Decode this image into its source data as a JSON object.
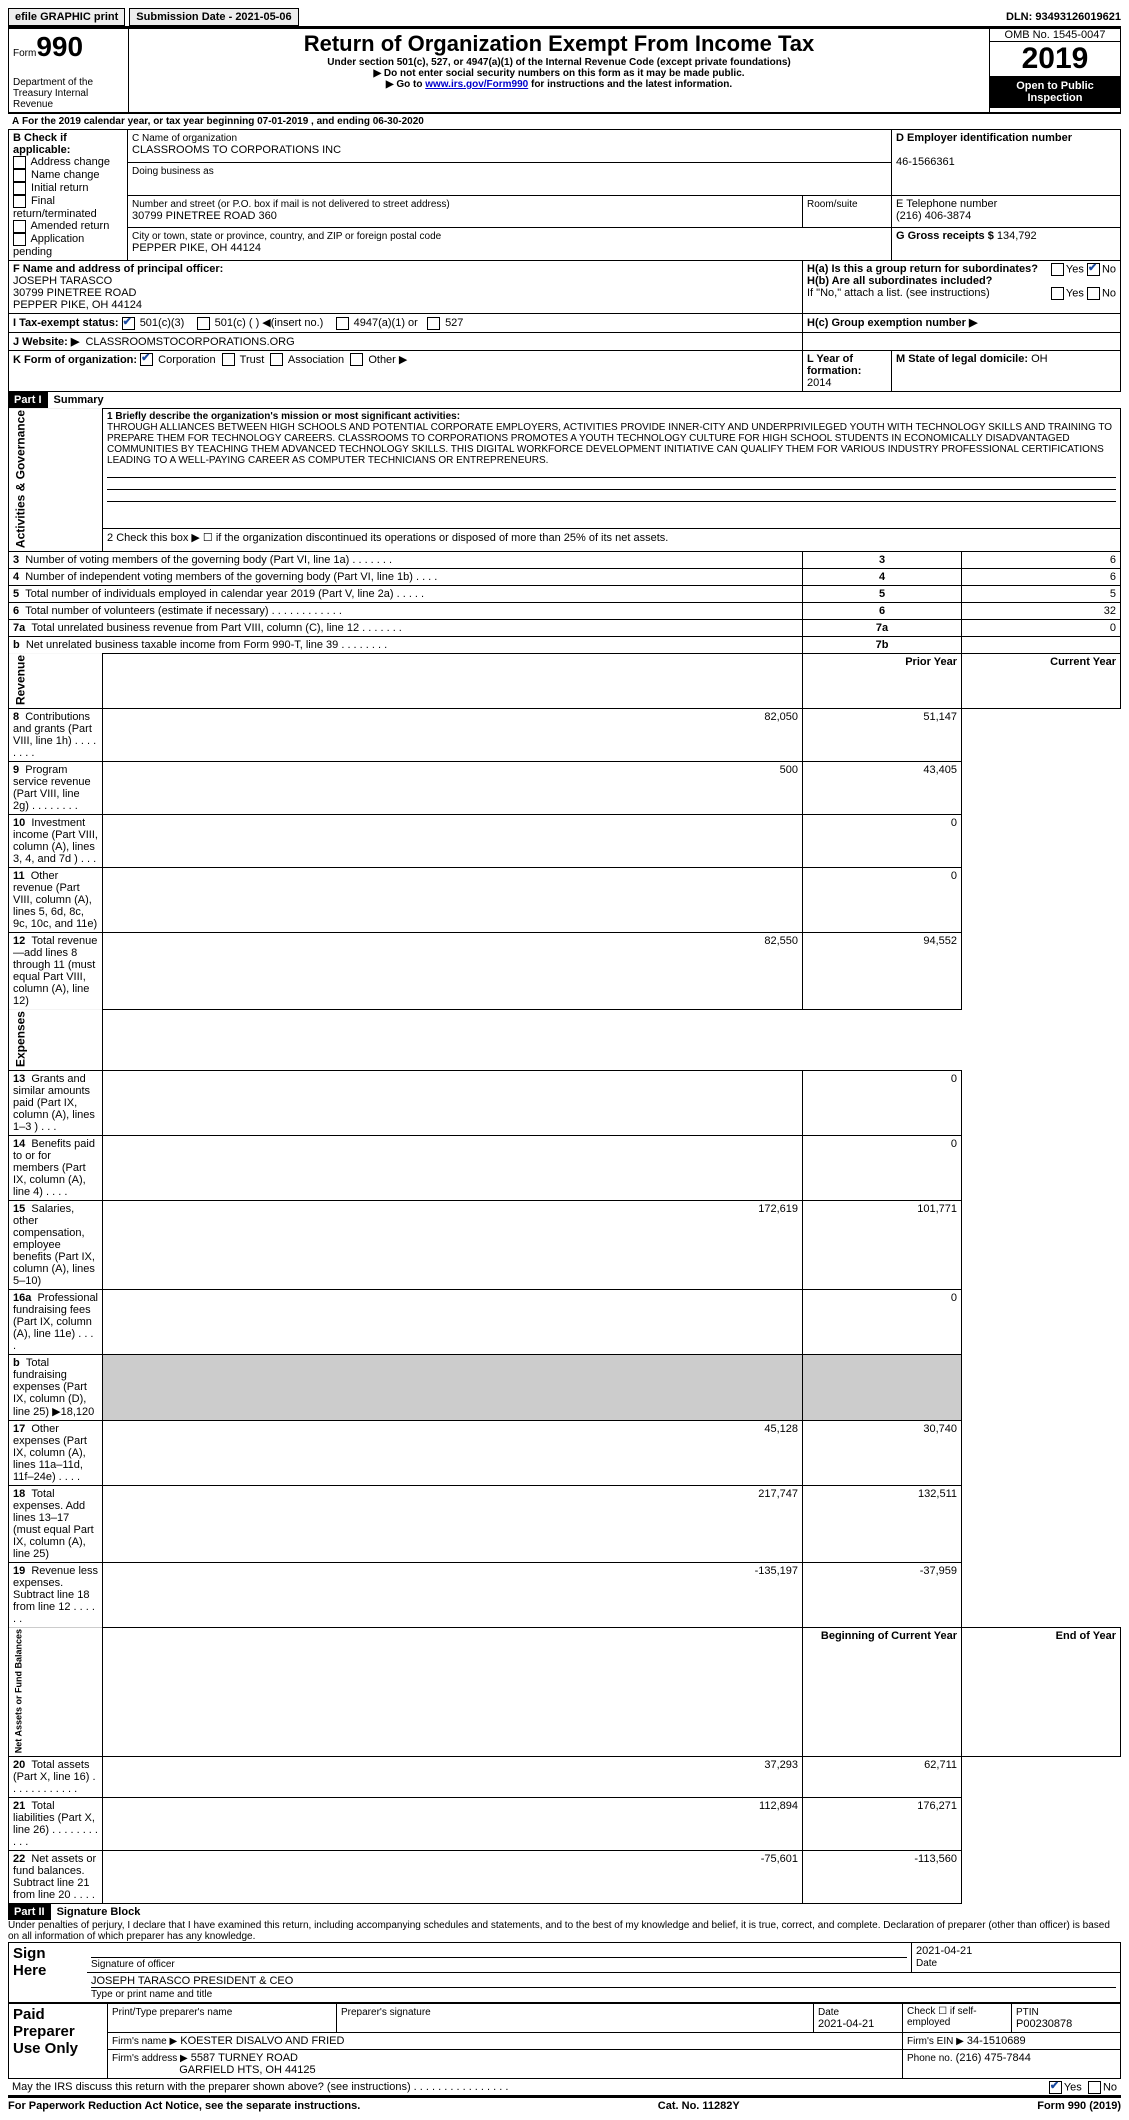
{
  "top": {
    "efile": "efile GRAPHIC print",
    "submission": "Submission Date - 2021-05-06",
    "dln": "DLN: 93493126019621"
  },
  "header": {
    "form_label": "Form",
    "form_no": "990",
    "dept": "Department of the Treasury Internal Revenue",
    "title": "Return of Organization Exempt From Income Tax",
    "sub": "Under section 501(c), 527, or 4947(a)(1) of the Internal Revenue Code (except private foundations)",
    "note1": "▶ Do not enter social security numbers on this form as it may be made public.",
    "note2_a": "▶ Go to ",
    "note2_link": "www.irs.gov/Form990",
    "note2_b": " for instructions and the latest information.",
    "omb": "OMB No. 1545-0047",
    "year": "2019",
    "open": "Open to Public Inspection"
  },
  "a_line": "For the 2019 calendar year, or tax year beginning 07-01-2019    , and ending 06-30-2020",
  "b": {
    "title": "B Check if applicable:",
    "opts": [
      "Address change",
      "Name change",
      "Initial return",
      "Final return/terminated",
      "Amended return",
      "Application pending"
    ]
  },
  "c": {
    "label_name": "C Name of organization",
    "name": "CLASSROOMS TO CORPORATIONS INC",
    "dba_label": "Doing business as",
    "addr_label": "Number and street (or P.O. box if mail is not delivered to street address)",
    "room_label": "Room/suite",
    "addr": "30799 PINETREE ROAD 360",
    "city_label": "City or town, state or province, country, and ZIP or foreign postal code",
    "city": "PEPPER PIKE, OH  44124"
  },
  "d": {
    "label": "D Employer identification number",
    "val": "46-1566361"
  },
  "e": {
    "label": "E Telephone number",
    "val": "(216) 406-3874"
  },
  "g": {
    "label": "G Gross receipts $",
    "val": "134,792"
  },
  "f": {
    "label": "F  Name and address of principal officer:",
    "name": "JOSEPH TARASCO",
    "addr1": "30799 PINETREE ROAD",
    "addr2": "PEPPER PIKE, OH  44124"
  },
  "h": {
    "a": "H(a)  Is this a group return for subordinates?",
    "b": "H(b)  Are all subordinates included?",
    "note": "If \"No,\" attach a list. (see instructions)",
    "c": "H(c)  Group exemption number ▶",
    "yes": "Yes",
    "no": "No"
  },
  "i": {
    "label": "I    Tax-exempt status:",
    "o1": "501(c)(3)",
    "o2": "501(c) (   ) ◀(insert no.)",
    "o3": "4947(a)(1) or",
    "o4": "527"
  },
  "j": {
    "label": "J    Website: ▶",
    "val": "CLASSROOMSTOCORPORATIONS.ORG"
  },
  "k": {
    "label": "K Form of organization:",
    "o1": "Corporation",
    "o2": "Trust",
    "o3": "Association",
    "o4": "Other ▶"
  },
  "l": {
    "label": "L Year of formation:",
    "val": "2014"
  },
  "m": {
    "label": "M State of legal domicile:",
    "val": "OH"
  },
  "part1": {
    "hdr": "Part I",
    "title": "Summary"
  },
  "mission": {
    "q": "1   Briefly describe the organization's mission or most significant activities:",
    "text": "THROUGH ALLIANCES BETWEEN HIGH SCHOOLS AND POTENTIAL CORPORATE EMPLOYERS, ACTIVITIES PROVIDE INNER-CITY AND UNDERPRIVILEGED YOUTH WITH TECHNOLOGY SKILLS AND TRAINING TO PREPARE THEM FOR TECHNOLOGY CAREERS. CLASSROOMS TO CORPORATIONS PROMOTES A YOUTH TECHNOLOGY CULTURE FOR HIGH SCHOOL STUDENTS IN ECONOMICALLY DISADVANTAGED COMMUNITIES BY TEACHING THEM ADVANCED TECHNOLOGY SKILLS. THIS DIGITAL WORKFORCE DEVELOPMENT INITIATIVE CAN QUALIFY THEM FOR VARIOUS INDUSTRY PROFESSIONAL CERTIFICATIONS LEADING TO A WELL-PAYING CAREER AS COMPUTER TECHNICIANS OR ENTREPRENEURS."
  },
  "lines": {
    "l2": "2   Check this box ▶ ☐ if the organization discontinued its operations or disposed of more than 25% of its net assets.",
    "rows_ag": [
      {
        "n": "3",
        "t": "Number of voting members of the governing body (Part VI, line 1a)  .   .   .   .   .   .   .",
        "box": "3",
        "v": "6"
      },
      {
        "n": "4",
        "t": "Number of independent voting members of the governing body (Part VI, line 1b)  .   .   .   .",
        "box": "4",
        "v": "6"
      },
      {
        "n": "5",
        "t": "Total number of individuals employed in calendar year 2019 (Part V, line 2a)   .   .   .   .   .",
        "box": "5",
        "v": "5"
      },
      {
        "n": "6",
        "t": "Total number of volunteers (estimate if necessary)   .   .   .   .   .   .   .   .   .   .   .   .",
        "box": "6",
        "v": "32"
      },
      {
        "n": "7a",
        "t": "Total unrelated business revenue from Part VIII, column (C), line 12   .   .   .   .   .   .   .",
        "box": "7a",
        "v": "0"
      },
      {
        "n": "b",
        "t": "Net unrelated business taxable income from Form 990-T, line 39   .   .   .   .   .   .   .   .",
        "box": "7b",
        "v": ""
      }
    ],
    "col_prior": "Prior Year",
    "col_curr": "Current Year",
    "revenue": [
      {
        "n": "8",
        "t": "Contributions and grants (Part VIII, line 1h)   .   .   .   .   .   .   .   .",
        "p": "82,050",
        "c": "51,147"
      },
      {
        "n": "9",
        "t": "Program service revenue (Part VIII, line 2g)   .   .   .   .   .   .   .   .",
        "p": "500",
        "c": "43,405"
      },
      {
        "n": "10",
        "t": "Investment income (Part VIII, column (A), lines 3, 4, and 7d )   .   .   .",
        "p": "",
        "c": "0"
      },
      {
        "n": "11",
        "t": "Other revenue (Part VIII, column (A), lines 5, 6d, 8c, 9c, 10c, and 11e)",
        "p": "",
        "c": "0"
      },
      {
        "n": "12",
        "t": "Total revenue—add lines 8 through 11 (must equal Part VIII, column (A), line 12)",
        "p": "82,550",
        "c": "94,552"
      }
    ],
    "expenses": [
      {
        "n": "13",
        "t": "Grants and similar amounts paid (Part IX, column (A), lines 1–3 )   .   .   .",
        "p": "",
        "c": "0"
      },
      {
        "n": "14",
        "t": "Benefits paid to or for members (Part IX, column (A), line 4)   .   .   .   .",
        "p": "",
        "c": "0"
      },
      {
        "n": "15",
        "t": "Salaries, other compensation, employee benefits (Part IX, column (A), lines 5–10)",
        "p": "172,619",
        "c": "101,771"
      },
      {
        "n": "16a",
        "t": "Professional fundraising fees (Part IX, column (A), line 11e)   .   .   .   .",
        "p": "",
        "c": "0"
      },
      {
        "n": "b",
        "t": "Total fundraising expenses (Part IX, column (D), line 25) ▶18,120",
        "p": "shade",
        "c": "shade"
      },
      {
        "n": "17",
        "t": "Other expenses (Part IX, column (A), lines 11a–11d, 11f–24e)   .   .   .   .",
        "p": "45,128",
        "c": "30,740"
      },
      {
        "n": "18",
        "t": "Total expenses. Add lines 13–17 (must equal Part IX, column (A), line 25)",
        "p": "217,747",
        "c": "132,511"
      },
      {
        "n": "19",
        "t": "Revenue less expenses. Subtract line 18 from line 12   .   .   .   .   .   .",
        "p": "-135,197",
        "c": "-37,959"
      }
    ],
    "col_begin": "Beginning of Current Year",
    "col_end": "End of Year",
    "netassets": [
      {
        "n": "20",
        "t": "Total assets (Part X, line 16)   .   .   .   .   .   .   .   .   .   .   .   .",
        "p": "37,293",
        "c": "62,711"
      },
      {
        "n": "21",
        "t": "Total liabilities (Part X, line 26)   .   .   .   .   .   .   .   .   .   .   .",
        "p": "112,894",
        "c": "176,271"
      },
      {
        "n": "22",
        "t": "Net assets or fund balances. Subtract line 21 from line 20   .   .   .   .",
        "p": "-75,601",
        "c": "-113,560"
      }
    ]
  },
  "vlabels": {
    "ag": "Activities & Governance",
    "rev": "Revenue",
    "exp": "Expenses",
    "na": "Net Assets or Fund Balances"
  },
  "part2": {
    "hdr": "Part II",
    "title": "Signature Block",
    "decl": "Under penalties of perjury, I declare that I have examined this return, including accompanying schedules and statements, and to the best of my knowledge and belief, it is true, correct, and complete. Declaration of preparer (other than officer) is based on all information of which preparer has any knowledge.",
    "sign": "Sign Here",
    "sig_label": "Signature of officer",
    "date": "2021-04-21",
    "date_label": "Date",
    "name": "JOSEPH TARASCO  PRESIDENT & CEO",
    "name_label": "Type or print name and title",
    "paid": "Paid Preparer Use Only",
    "pp_name_label": "Print/Type preparer's name",
    "pp_sig_label": "Preparer's signature",
    "pp_date_label": "Date",
    "pp_date": "2021-04-21",
    "pp_check": "Check ☐ if self-employed",
    "ptin_label": "PTIN",
    "ptin": "P00230878",
    "firm_name_label": "Firm's name    ▶",
    "firm_name": "KOESTER DISALVO AND FRIED",
    "firm_ein_label": "Firm's EIN ▶",
    "firm_ein": "34-1510689",
    "firm_addr_label": "Firm's address ▶",
    "firm_addr1": "5587 TURNEY ROAD",
    "firm_addr2": "GARFIELD HTS, OH  44125",
    "phone_label": "Phone no.",
    "phone": "(216) 475-7844",
    "may": "May the IRS discuss this return with the preparer shown above? (see instructions)   .   .   .   .   .   .   .   .   .   .   .   .   .   .   .   .",
    "yes": "Yes",
    "no": "No"
  },
  "footer": {
    "l": "For Paperwork Reduction Act Notice, see the separate instructions.",
    "c": "Cat. No. 11282Y",
    "r": "Form 990 (2019)"
  }
}
